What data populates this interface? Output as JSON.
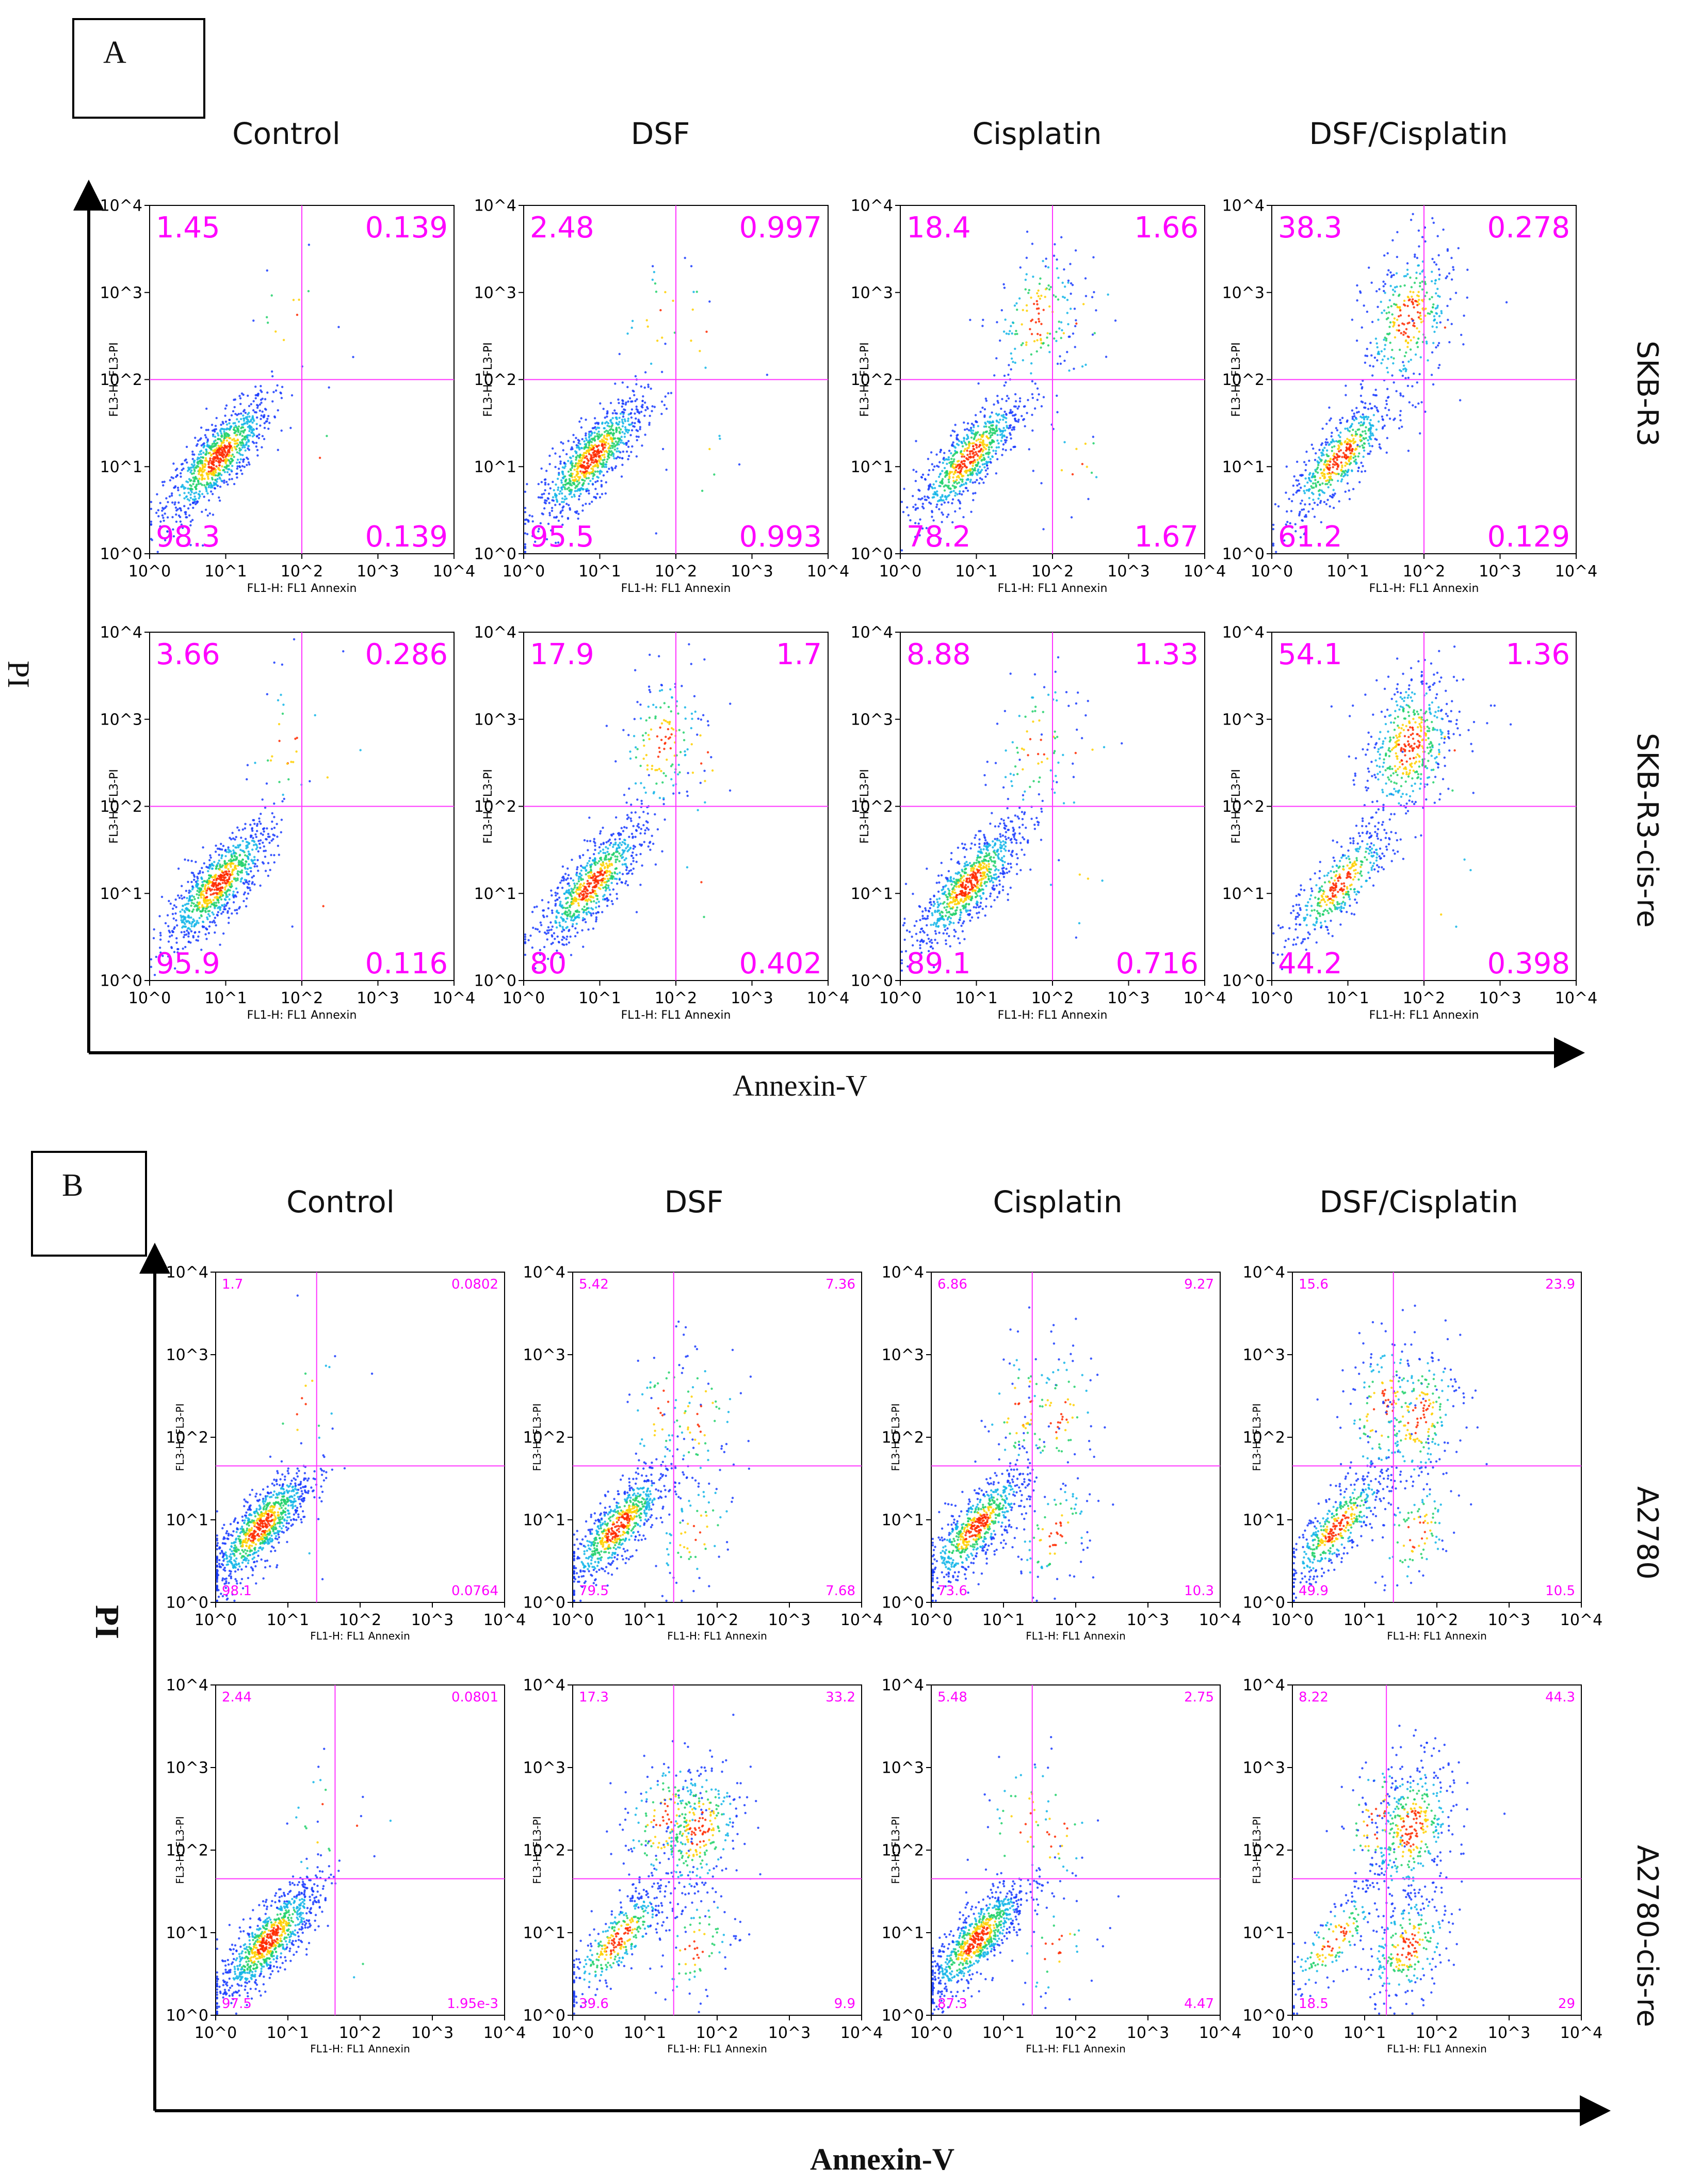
{
  "figure": {
    "panel_a": {
      "letter": "A",
      "columns": [
        "Control",
        "DSF",
        "Cisplatin",
        "DSF/Cisplatin"
      ],
      "rows": [
        "SKB-R3",
        "SKB-R3-cis-re"
      ],
      "x_axis_label": "Annexin-V",
      "y_axis_label": "PI"
    },
    "panel_b": {
      "letter": "B",
      "columns": [
        "Control",
        "DSF",
        "Cisplatin",
        "DSF/Cisplatin"
      ],
      "rows": [
        "A2780",
        "A2780-cis-re"
      ],
      "x_axis_label": "Annexin-V",
      "y_axis_label": "PI"
    }
  },
  "chart_data": {
    "type": "scatter",
    "subtype": "flow-cytometry-quadrant-density",
    "xlabel": "FL1-H: FL1  Annexin",
    "ylabel": "FL3-H: FL3-PI",
    "xscale": "log",
    "yscale": "log",
    "xlim": [
      1,
      10000
    ],
    "ylim": [
      1,
      10000
    ],
    "tick_labels": [
      "10^0",
      "10^1",
      "10^2",
      "10^3",
      "10^4"
    ],
    "quadrant_order": [
      "upper-left",
      "upper-right",
      "lower-left",
      "lower-right"
    ],
    "quadrant_text_color": "#ff00ff",
    "gate_color": "#ff33ff",
    "panels": [
      {
        "panel": "A",
        "row": "SKB-R3",
        "column": "Control",
        "quadrants": [
          "1.45",
          "0.139",
          "98.3",
          "0.139"
        ],
        "gate": [
          100,
          100
        ]
      },
      {
        "panel": "A",
        "row": "SKB-R3",
        "column": "DSF",
        "quadrants": [
          "2.48",
          "0.997",
          "95.5",
          "0.993"
        ],
        "gate": [
          100,
          100
        ]
      },
      {
        "panel": "A",
        "row": "SKB-R3",
        "column": "Cisplatin",
        "quadrants": [
          "18.4",
          "1.66",
          "78.2",
          "1.67"
        ],
        "gate": [
          100,
          100
        ]
      },
      {
        "panel": "A",
        "row": "SKB-R3",
        "column": "DSF/Cisplatin",
        "quadrants": [
          "38.3",
          "0.278",
          "61.2",
          "0.129"
        ],
        "gate": [
          100,
          100
        ]
      },
      {
        "panel": "A",
        "row": "SKB-R3-cis-re",
        "column": "Control",
        "quadrants": [
          "3.66",
          "0.286",
          "95.9",
          "0.116"
        ],
        "gate": [
          100,
          100
        ]
      },
      {
        "panel": "A",
        "row": "SKB-R3-cis-re",
        "column": "DSF",
        "quadrants": [
          "17.9",
          "1.7",
          "80",
          "0.402"
        ],
        "gate": [
          100,
          100
        ]
      },
      {
        "panel": "A",
        "row": "SKB-R3-cis-re",
        "column": "Cisplatin",
        "quadrants": [
          "8.88",
          "1.33",
          "89.1",
          "0.716"
        ],
        "gate": [
          100,
          100
        ]
      },
      {
        "panel": "A",
        "row": "SKB-R3-cis-re",
        "column": "DSF/Cisplatin",
        "quadrants": [
          "54.1",
          "1.36",
          "44.2",
          "0.398"
        ],
        "gate": [
          100,
          100
        ]
      },
      {
        "panel": "B",
        "row": "A2780",
        "column": "Control",
        "quadrants": [
          "1.7",
          "0.0802",
          "98.1",
          "0.0764"
        ],
        "gate": [
          25,
          45
        ]
      },
      {
        "panel": "B",
        "row": "A2780",
        "column": "DSF",
        "quadrants": [
          "5.42",
          "7.36",
          "79.5",
          "7.68"
        ],
        "gate": [
          25,
          45
        ]
      },
      {
        "panel": "B",
        "row": "A2780",
        "column": "Cisplatin",
        "quadrants": [
          "6.86",
          "9.27",
          "73.6",
          "10.3"
        ],
        "gate": [
          25,
          45
        ]
      },
      {
        "panel": "B",
        "row": "A2780",
        "column": "DSF/Cisplatin",
        "quadrants": [
          "15.6",
          "23.9",
          "49.9",
          "10.5"
        ],
        "gate": [
          25,
          45
        ]
      },
      {
        "panel": "B",
        "row": "A2780-cis-re",
        "column": "Control",
        "quadrants": [
          "2.44",
          "0.0801",
          "97.5",
          "1.95e-3"
        ],
        "gate": [
          45,
          45
        ]
      },
      {
        "panel": "B",
        "row": "A2780-cis-re",
        "column": "DSF",
        "quadrants": [
          "17.3",
          "33.2",
          "39.6",
          "9.9"
        ],
        "gate": [
          25,
          45
        ]
      },
      {
        "panel": "B",
        "row": "A2780-cis-re",
        "column": "Cisplatin",
        "quadrants": [
          "5.48",
          "2.75",
          "87.3",
          "4.47"
        ],
        "gate": [
          25,
          45
        ]
      },
      {
        "panel": "B",
        "row": "A2780-cis-re",
        "column": "DSF/Cisplatin",
        "quadrants": [
          "8.22",
          "44.3",
          "18.5",
          "29"
        ],
        "gate": [
          20,
          45
        ]
      }
    ]
  }
}
